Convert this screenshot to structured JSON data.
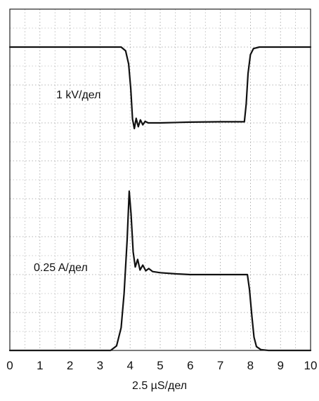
{
  "chart_data": {
    "type": "line",
    "x_unit_label": "2.5 µS/дел",
    "x_ticks": [
      "0",
      "1",
      "2",
      "3",
      "4",
      "5",
      "6",
      "7",
      "8",
      "9",
      "10"
    ],
    "xlim": [
      0,
      10
    ],
    "ylim": [
      0,
      9
    ],
    "grid": true,
    "grid_style": "dotted",
    "colors": {
      "trace": "#111111",
      "grid": "#9a9a9a",
      "frame": "#222222"
    },
    "series": [
      {
        "name": "1 kV/дел",
        "label_position": "left-middle",
        "x": [
          0,
          3.7,
          3.85,
          3.95,
          4.02,
          4.08,
          4.14,
          4.2,
          4.27,
          4.34,
          4.42,
          4.5,
          4.6,
          5,
          6,
          7,
          7.8,
          7.86,
          7.92,
          8.0,
          8.1,
          8.3,
          9,
          10
        ],
        "values": [
          8,
          8,
          7.9,
          7.55,
          6.9,
          6.1,
          5.85,
          6.12,
          5.9,
          6.08,
          5.95,
          6.04,
          6.0,
          6.0,
          6.02,
          6.03,
          6.03,
          6.5,
          7.3,
          7.8,
          7.96,
          8.0,
          8.0,
          8.0
        ]
      },
      {
        "name": "0.25 A/дел",
        "label_position": "left-lower",
        "x": [
          0,
          3.35,
          3.55,
          3.7,
          3.8,
          3.9,
          3.97,
          4.03,
          4.1,
          4.17,
          4.25,
          4.33,
          4.42,
          4.52,
          4.62,
          4.75,
          5,
          5.5,
          6,
          7,
          7.9,
          7.97,
          8.05,
          8.12,
          8.2,
          8.35,
          8.6,
          9,
          10
        ],
        "values": [
          0,
          0,
          0.12,
          0.6,
          1.5,
          2.9,
          4.2,
          3.6,
          2.6,
          2.2,
          2.4,
          2.12,
          2.25,
          2.1,
          2.16,
          2.08,
          2.05,
          2.02,
          2.0,
          2.0,
          2.0,
          1.6,
          0.9,
          0.35,
          0.1,
          0.02,
          0,
          0,
          0
        ]
      }
    ]
  }
}
